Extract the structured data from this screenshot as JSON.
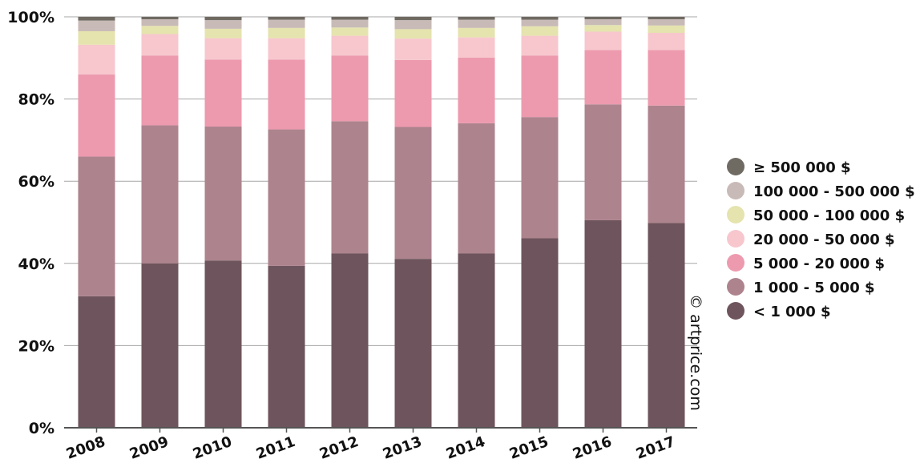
{
  "chart_data": {
    "type": "bar",
    "stacked": true,
    "categories": [
      "2008",
      "2009",
      "2010",
      "2011",
      "2012",
      "2013",
      "2014",
      "2015",
      "2016",
      "2017"
    ],
    "y_ticks": [
      "0%",
      "20%",
      "40%",
      "60%",
      "80%",
      "100%"
    ],
    "ylim": [
      0,
      100
    ],
    "grid": true,
    "legend_position": "right",
    "series": [
      {
        "name": "< 1 000 $",
        "color": "#6e545c",
        "values": [
          32,
          40,
          40.7,
          39.4,
          42.4,
          41.1,
          42.4,
          46.1,
          50.5,
          49.8
        ]
      },
      {
        "name": "1 000 - 5 000 $",
        "color": "#ad838e",
        "values": [
          34,
          33.6,
          32.6,
          33.2,
          32.2,
          32.1,
          31.7,
          29.5,
          28.2,
          28.6
        ]
      },
      {
        "name": "5 000 - 20 000 $",
        "color": "#ed9aae",
        "values": [
          20,
          17,
          16.3,
          17,
          16,
          16.3,
          16,
          15,
          13.2,
          13.5
        ]
      },
      {
        "name": "20 000 - 50 000 $",
        "color": "#f7c7cd",
        "values": [
          7.2,
          5.2,
          5.2,
          5.2,
          4.8,
          5.2,
          4.9,
          4.8,
          4.5,
          4.2
        ]
      },
      {
        "name": "50 000 - 100 000 $",
        "color": "#e5e3ae",
        "values": [
          3.3,
          2,
          2.3,
          2.5,
          2,
          2.3,
          2.3,
          2.3,
          1.6,
          1.8
        ]
      },
      {
        "name": "100 000 - 500 000 $",
        "color": "#c8bab6",
        "values": [
          2.6,
          1.6,
          2.1,
          2,
          1.9,
          2.2,
          2,
          1.6,
          1.4,
          1.5
        ]
      },
      {
        "name": "≥ 500 000 $",
        "color": "#6f6a62",
        "values": [
          0.9,
          0.6,
          0.8,
          0.7,
          0.7,
          0.8,
          0.7,
          0.7,
          0.6,
          0.6
        ]
      }
    ],
    "annotation": "© artprice.com"
  }
}
